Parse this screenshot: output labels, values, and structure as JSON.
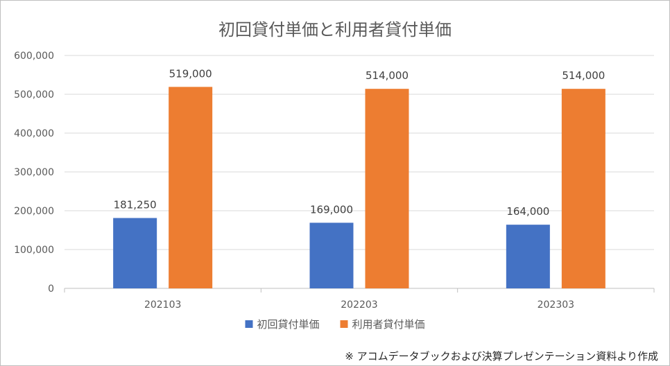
{
  "chart_data": {
    "type": "bar",
    "title": "初回貸付単価と利用者貸付単価",
    "categories": [
      "202103",
      "202203",
      "202303"
    ],
    "series": [
      {
        "name": "初回貸付単価",
        "values": [
          181250,
          169000,
          164000
        ],
        "color": "#4472C4"
      },
      {
        "name": "利用者貸付単価",
        "values": [
          519000,
          514000,
          514000
        ],
        "color": "#ED7D31"
      }
    ],
    "data_labels": [
      [
        "181,250",
        "169,000",
        "164,000"
      ],
      [
        "519,000",
        "514,000",
        "514,000"
      ]
    ],
    "y_ticks": [
      {
        "value": 0,
        "label": "0"
      },
      {
        "value": 100000,
        "label": "100,000"
      },
      {
        "value": 200000,
        "label": "200,000"
      },
      {
        "value": 300000,
        "label": "300,000"
      },
      {
        "value": 400000,
        "label": "400,000"
      },
      {
        "value": 500000,
        "label": "500,000"
      },
      {
        "value": 600000,
        "label": "600,000"
      }
    ],
    "ylim": [
      0,
      600000
    ],
    "grid": true,
    "legend_position": "bottom",
    "gridline_color": "#d9d9d9"
  },
  "footnote": "※ アコムデータブックおよび決算プレゼンテーション資料より作成"
}
